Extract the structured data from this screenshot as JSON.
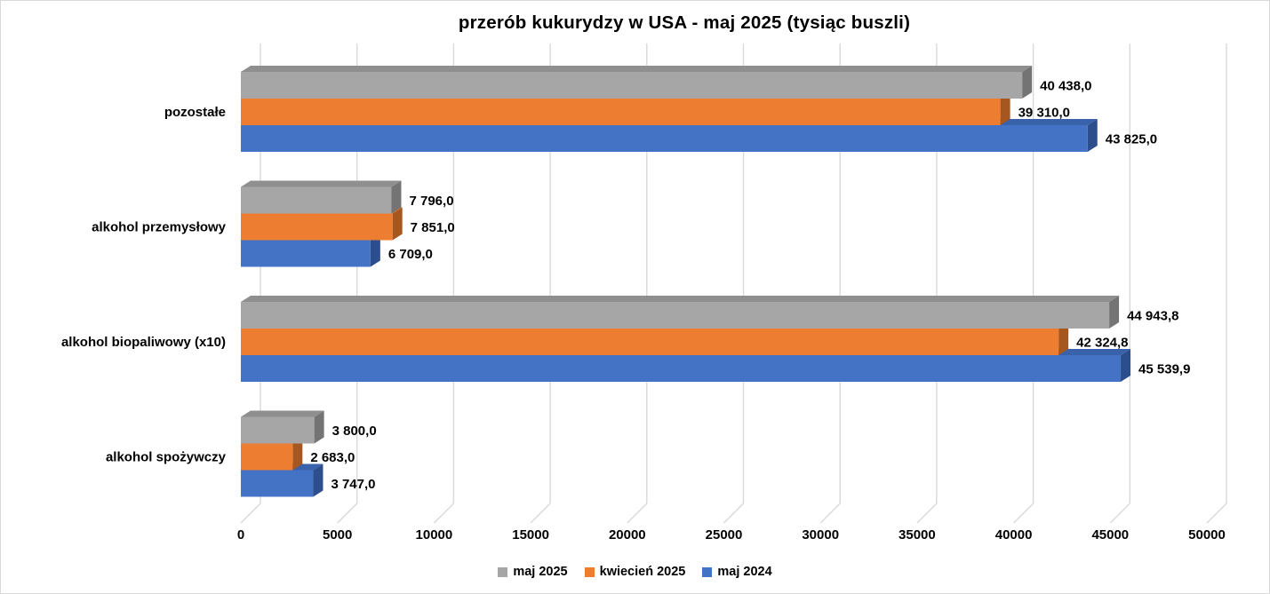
{
  "chart_data": {
    "type": "bar",
    "orientation": "horizontal",
    "effect": "3d",
    "title": "przerób kukurydzy w USA - maj 2025 (tysiąc buszli)",
    "categories": [
      "pozostałe",
      "alkohol przemysłowy",
      "alkohol biopaliwowy (x10)",
      "alkohol spożywczy"
    ],
    "series": [
      {
        "name": "maj 2025",
        "color": "#A6A6A6",
        "color_top": "#8F8F8F",
        "color_side": "#747474",
        "values": [
          40438.0,
          7796.0,
          44943.8,
          3800.0
        ],
        "value_labels": [
          "40 438,0",
          "7 796,0",
          "44 943,8",
          "3 800,0"
        ]
      },
      {
        "name": "kwiecień 2025",
        "color": "#ED7D31",
        "color_top": "#D06B28",
        "color_side": "#A6561F",
        "values": [
          39310.0,
          7851.0,
          42324.8,
          2683.0
        ],
        "value_labels": [
          "39 310,0",
          "7 851,0",
          "42 324,8",
          "2 683,0"
        ]
      },
      {
        "name": "maj 2024",
        "color": "#4472C4",
        "color_top": "#3A62AB",
        "color_side": "#2D4E8D",
        "values": [
          43825.0,
          6709.0,
          45539.9,
          3747.0
        ],
        "value_labels": [
          "43 825,0",
          "6 709,0",
          "45 539,9",
          "3 747,0"
        ]
      }
    ],
    "xlabel": "",
    "ylabel": "",
    "xlim": [
      0,
      50000
    ],
    "x_ticks": [
      0,
      5000,
      10000,
      15000,
      20000,
      25000,
      30000,
      35000,
      40000,
      45000,
      50000
    ],
    "x_tick_labels": [
      "0",
      "5000",
      "10000",
      "15000",
      "20000",
      "25000",
      "30000",
      "35000",
      "40000",
      "45000",
      "50000"
    ],
    "grid": "vertical-backwall",
    "legend_position": "bottom",
    "colors": {
      "background": "#FFFFFF",
      "border": "#D9D9D9",
      "gridline": "#D9D9D9",
      "text": "#000000"
    }
  }
}
